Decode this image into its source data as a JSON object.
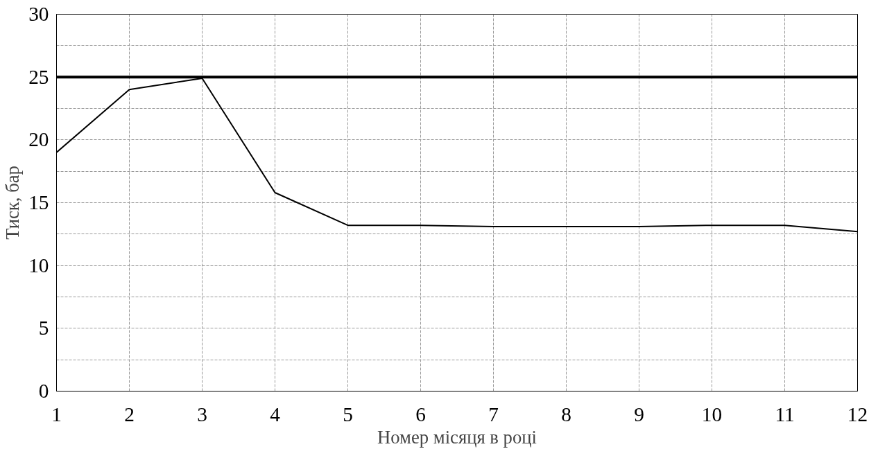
{
  "chart_data": {
    "type": "line",
    "xlabel": "Номер місяця в році",
    "ylabel": "Тиск, бар",
    "x": [
      1,
      2,
      3,
      4,
      5,
      6,
      7,
      8,
      9,
      10,
      11,
      12
    ],
    "series": [
      {
        "color": "#000000",
        "values": [
          19,
          24,
          24.9,
          15.8,
          13.2,
          13.2,
          13.1,
          13.1,
          13.1,
          13.2,
          13.2,
          12.7
        ]
      }
    ],
    "xlim": [
      1,
      12
    ],
    "xticks": [
      1,
      2,
      3,
      4,
      5,
      6,
      7,
      8,
      9,
      10,
      11,
      12
    ],
    "ylim": [
      0,
      30
    ],
    "yticks": [
      0,
      {
        "value": 2.5,
        "label": null
      },
      5,
      {
        "value": 7.5,
        "label": null
      },
      10,
      {
        "value": 12.5,
        "label": null
      },
      15,
      {
        "value": 17.5,
        "label": null
      },
      20,
      {
        "value": 22.5,
        "label": null
      },
      25,
      {
        "value": 27.5,
        "label": null
      },
      30
    ],
    "ref_lines": [
      {
        "axis": "y",
        "value": 25,
        "color": "#000000"
      }
    ],
    "grid": true,
    "marker": "none",
    "line_style": "solid"
  }
}
